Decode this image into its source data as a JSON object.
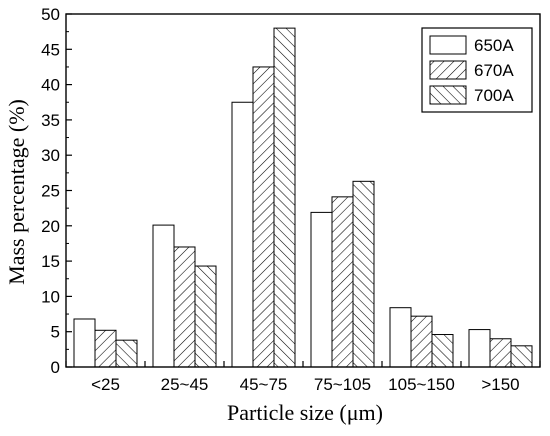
{
  "chart_data": {
    "type": "bar",
    "title": "",
    "xlabel": "Particle size (μm)",
    "ylabel": "Mass percentage (%)",
    "categories": [
      "<25",
      "25~45",
      "45~75",
      "75~105",
      "105~150",
      ">150"
    ],
    "ylim": [
      0,
      50
    ],
    "yticks": [
      0,
      5,
      10,
      15,
      20,
      25,
      30,
      35,
      40,
      45,
      50
    ],
    "grid": false,
    "legend_position": "top-right",
    "series": [
      {
        "name": "650A",
        "pattern": "none",
        "values": [
          6.8,
          20.1,
          37.5,
          21.9,
          8.4,
          5.3
        ]
      },
      {
        "name": "670A",
        "pattern": "forward-hatch",
        "values": [
          5.2,
          17.0,
          42.5,
          24.1,
          7.2,
          4.0
        ]
      },
      {
        "name": "700A",
        "pattern": "backward-hatch",
        "values": [
          3.8,
          14.3,
          48.0,
          26.3,
          4.6,
          3.0
        ]
      }
    ]
  }
}
